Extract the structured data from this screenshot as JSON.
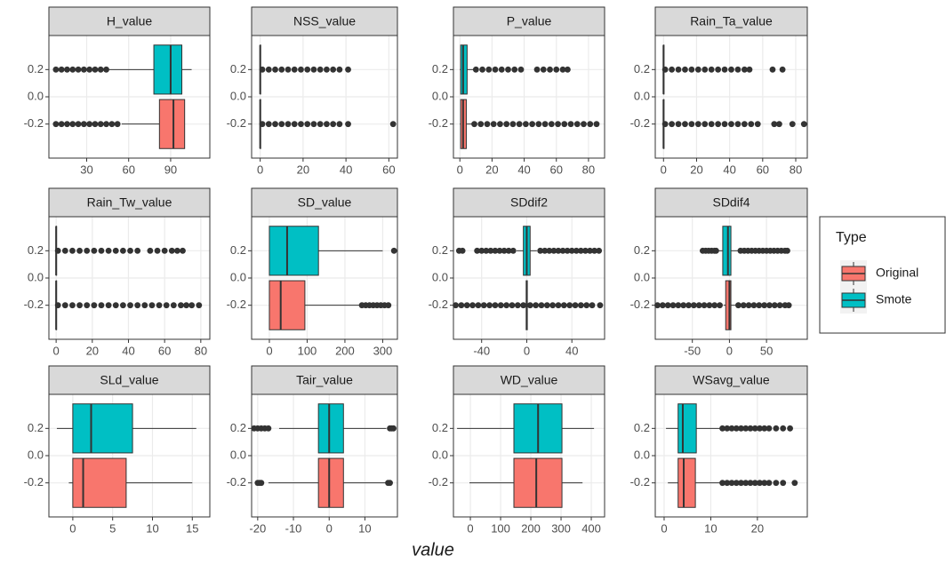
{
  "chart_data": {
    "type": "box",
    "xlabel": "value",
    "legend_title": "Type",
    "series": [
      {
        "name": "Original",
        "color": "#F8766D",
        "y": -0.2
      },
      {
        "name": "Smote",
        "color": "#00BFC4",
        "y": 0.2
      }
    ],
    "ylim": [
      -0.45,
      0.45
    ],
    "yticks": [
      0.2,
      {
        "value": 0,
        "label": "0.0"
      },
      -0.2
    ],
    "facets": [
      {
        "title": "H_value",
        "xlim": [
          3,
          118
        ],
        "xticks": [
          30,
          60,
          90
        ],
        "boxes": [
          {
            "whislo": 55,
            "q1": 82,
            "med": 92,
            "q3": 100,
            "whishi": 100,
            "outliers": [
              8,
              12,
              16,
              20,
              24,
              28,
              32,
              36,
              40,
              44,
              48,
              52
            ]
          },
          {
            "whislo": 46,
            "q1": 78,
            "med": 90,
            "q3": 98,
            "whishi": 105,
            "outliers": [
              8,
              12,
              16,
              20,
              24,
              28,
              32,
              36,
              40,
              44
            ]
          }
        ]
      },
      {
        "title": "NSS_value",
        "xlim": [
          -4,
          64
        ],
        "xticks": [
          0,
          20,
          40,
          60
        ],
        "boxes": [
          {
            "whislo": 0,
            "q1": 0,
            "med": 0,
            "q3": 0.1,
            "whishi": 0.3,
            "outliers": [
              1,
              4,
              7,
              10,
              13,
              16,
              19,
              22,
              25,
              28,
              31,
              34,
              37,
              41,
              62
            ]
          },
          {
            "whislo": 0,
            "q1": 0,
            "med": 0,
            "q3": 0.1,
            "whishi": 0.3,
            "outliers": [
              1,
              4,
              7,
              10,
              13,
              16,
              19,
              22,
              25,
              28,
              31,
              34,
              37,
              41
            ]
          }
        ]
      },
      {
        "title": "P_value",
        "xlim": [
          -4,
          90
        ],
        "xticks": [
          0,
          20,
          40,
          60,
          80
        ],
        "boxes": [
          {
            "whislo": 0,
            "q1": 0.5,
            "med": 2,
            "q3": 4,
            "whishi": 8,
            "outliers": [
              9,
              13,
              17,
              21,
              25,
              29,
              33,
              37,
              41,
              45,
              49,
              53,
              57,
              61,
              65,
              69,
              73,
              77,
              81,
              85
            ]
          },
          {
            "whislo": 0,
            "q1": 0.5,
            "med": 2,
            "q3": 4.5,
            "whishi": 9,
            "outliers": [
              10,
              14,
              18,
              22,
              26,
              30,
              34,
              38,
              48,
              52,
              56,
              60,
              64,
              67
            ]
          }
        ]
      },
      {
        "title": "Rain_Ta_value",
        "xlim": [
          -5,
          87
        ],
        "xticks": [
          0,
          20,
          40,
          60,
          80
        ],
        "boxes": [
          {
            "whislo": 0,
            "q1": 0,
            "med": 0,
            "q3": 0.1,
            "whishi": 0.3,
            "outliers": [
              1,
              5,
              9,
              13,
              17,
              21,
              25,
              29,
              33,
              37,
              41,
              45,
              49,
              53,
              57,
              67,
              70,
              78,
              85
            ]
          },
          {
            "whislo": 0,
            "q1": 0,
            "med": 0,
            "q3": 0.1,
            "whishi": 0.3,
            "outliers": [
              1,
              5,
              9,
              13,
              17,
              21,
              25,
              29,
              33,
              37,
              41,
              45,
              49,
              52,
              66,
              72
            ]
          }
        ]
      },
      {
        "title": "Rain_Tw_value",
        "xlim": [
          -4,
          85
        ],
        "xticks": [
          0,
          20,
          40,
          60,
          80
        ],
        "boxes": [
          {
            "whislo": 0,
            "q1": 0,
            "med": 0,
            "q3": 0.1,
            "whishi": 0.3,
            "outliers": [
              1,
              5,
              9,
              13,
              17,
              21,
              25,
              29,
              33,
              37,
              41,
              45,
              49,
              53,
              57,
              61,
              65,
              69,
              72,
              75,
              79
            ]
          },
          {
            "whislo": 0,
            "q1": 0,
            "med": 0,
            "q3": 0.1,
            "whishi": 0.3,
            "outliers": [
              1,
              5,
              9,
              13,
              17,
              21,
              25,
              29,
              33,
              37,
              41,
              45,
              52,
              56,
              60,
              64,
              67,
              70
            ]
          }
        ]
      },
      {
        "title": "SD_value",
        "xlim": [
          -47,
          339
        ],
        "xticks": [
          0,
          100,
          200,
          300
        ],
        "boxes": [
          {
            "whislo": 0,
            "q1": 0,
            "med": 30,
            "q3": 94,
            "whishi": 240,
            "outliers": [
              245,
              255,
              265,
              275,
              285,
              295,
              305,
              315
            ]
          },
          {
            "whislo": 0,
            "q1": 0,
            "med": 47,
            "q3": 130,
            "whishi": 300,
            "outliers": [
              330
            ]
          }
        ]
      },
      {
        "title": "SDdif2",
        "xlim": [
          -65,
          69
        ],
        "xticks": [
          -40,
          0,
          40
        ],
        "boxes": [
          {
            "whislo": -1,
            "q1": -0.5,
            "med": 0,
            "q3": 0.5,
            "whishi": 1,
            "outliers": [
              -63,
              -58,
              -53,
              -48,
              -43,
              -38,
              -33,
              -28,
              -23,
              -18,
              -13,
              -8,
              -3,
              3,
              8,
              13,
              18,
              23,
              28,
              33,
              38,
              43,
              48,
              53,
              58,
              65
            ]
          },
          {
            "whislo": -9,
            "q1": -3,
            "med": 0,
            "q3": 3,
            "whishi": 9,
            "outliers": [
              -60,
              -57,
              -44,
              -40,
              -36,
              -32,
              -28,
              -24,
              -20,
              -16,
              -12,
              12,
              16,
              20,
              24,
              28,
              32,
              36,
              40,
              44,
              48,
              52,
              56,
              60,
              64
            ]
          }
        ]
      },
      {
        "title": "SDdif4",
        "xlim": [
          -100,
          105
        ],
        "xticks": [
          -50,
          0,
          50
        ],
        "boxes": [
          {
            "whislo": -8,
            "q1": -5,
            "med": 0,
            "q3": 2,
            "whishi": 8,
            "outliers": [
              -97,
              -90,
              -83,
              -76,
              -69,
              -62,
              -55,
              -48,
              -41,
              -34,
              -27,
              -20,
              -13,
              12,
              19,
              26,
              33,
              40,
              47,
              54,
              61,
              68,
              75,
              80
            ]
          },
          {
            "whislo": -15,
            "q1": -9,
            "med": -2,
            "q3": 2,
            "whishi": 14,
            "outliers": [
              -36,
              -32,
              -28,
              -24,
              -20,
              -18,
              15,
              20,
              25,
              30,
              35,
              40,
              45,
              50,
              55,
              60,
              65,
              70,
              75,
              78
            ]
          }
        ]
      },
      {
        "title": "SLd_value",
        "xlim": [
          -3,
          17.2
        ],
        "xticks": [
          0,
          5,
          10,
          15
        ],
        "boxes": [
          {
            "whislo": -0.5,
            "q1": 0,
            "med": 1.3,
            "q3": 6.7,
            "whishi": 15,
            "outliers": []
          },
          {
            "whislo": -2,
            "q1": 0,
            "med": 2.3,
            "q3": 7.5,
            "whishi": 15.5,
            "outliers": []
          }
        ]
      },
      {
        "title": "Tair_value",
        "xlim": [
          -21.7,
          19.1
        ],
        "xticks": [
          -20,
          -10,
          0,
          10
        ],
        "boxes": [
          {
            "whislo": -17,
            "q1": -3,
            "med": 0,
            "q3": 4,
            "whishi": 16,
            "outliers": [
              -20,
              -19.5,
              -19,
              16.5,
              17
            ]
          },
          {
            "whislo": -14,
            "q1": -3,
            "med": 0,
            "q3": 4,
            "whishi": 16,
            "outliers": [
              -21,
              -20,
              -19,
              -18,
              -17,
              17,
              17.5,
              18
            ]
          }
        ]
      },
      {
        "title": "WD_value",
        "xlim": [
          -56,
          444
        ],
        "xticks": [
          0,
          100,
          200,
          300,
          400
        ],
        "boxes": [
          {
            "whislo": -3,
            "q1": 144,
            "med": 218,
            "q3": 303,
            "whishi": 371,
            "outliers": []
          },
          {
            "whislo": -44,
            "q1": 144,
            "med": 224,
            "q3": 303,
            "whishi": 409,
            "outliers": []
          }
        ]
      },
      {
        "title": "WSavg_value",
        "xlim": [
          -1.9,
          30.7
        ],
        "xticks": [
          0,
          10,
          20
        ],
        "boxes": [
          {
            "whislo": 0.8,
            "q1": 3,
            "med": 4.2,
            "q3": 6.7,
            "whishi": 12.2,
            "outliers": [
              12.5,
              13.5,
              14.5,
              15.5,
              16.5,
              17.5,
              18.5,
              19.5,
              20.5,
              21.5,
              22.5,
              24,
              25.5,
              28
            ]
          },
          {
            "whislo": 0.4,
            "q1": 3,
            "med": 4,
            "q3": 6.9,
            "whishi": 12.2,
            "outliers": [
              12.5,
              13.5,
              14.5,
              15.5,
              16.5,
              17.5,
              18.5,
              19.5,
              20.5,
              21.5,
              22.5,
              24,
              25.5,
              27
            ]
          }
        ]
      }
    ]
  }
}
